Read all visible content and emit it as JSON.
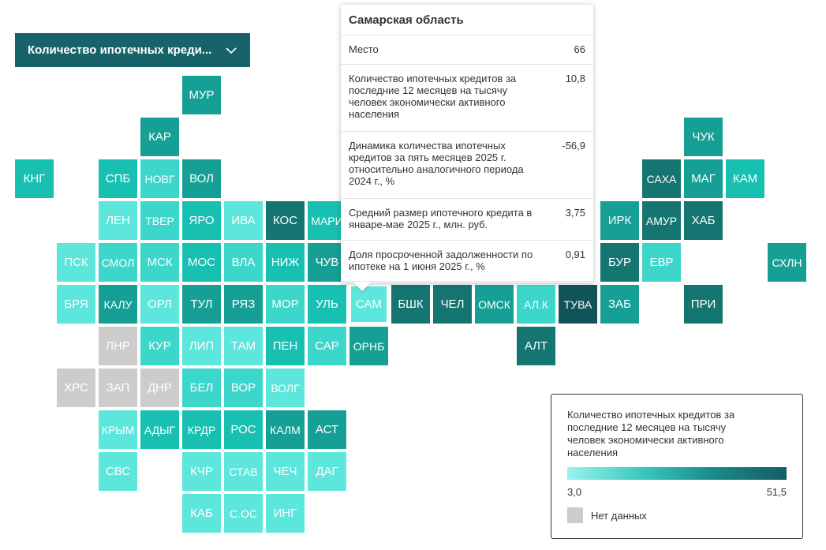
{
  "dropdown": {
    "label": "Количество ипотечных креди..."
  },
  "tooltip": {
    "title": "Самарская область",
    "rows": [
      {
        "label": "Место",
        "value": "66"
      },
      {
        "label": "Количество ипотечных кредитов за последние 12 месяцев на тысячу человек экономически активного населения",
        "value": "10,8"
      },
      {
        "label": "Динамика количества ипотечных кредитов за пять месяцев 2025 г. относительно аналогичного периода 2024 г., %",
        "value": "-56,9"
      },
      {
        "label": "Средний размер ипотечного кредита в январе-мае 2025 г., млн. руб.",
        "value": "3,75"
      },
      {
        "label": "Доля просроченной задолженности по ипотеке на 1 июня 2025 г., %",
        "value": "0,91"
      }
    ]
  },
  "legend": {
    "title": "Количество ипотечных кредитов за последние 12 месяцев на тысячу человек экономически активного населения",
    "min": "3,0",
    "max": "51,5",
    "nodata": "Нет данных",
    "colors": [
      "#9af3ec",
      "#3cc9bf",
      "#1a8a8a",
      "#155d65"
    ],
    "nodata_color": "#cccccc"
  },
  "regions": [
    {
      "code": "МУР",
      "row": 0,
      "col": 4,
      "color": "#16a095"
    },
    {
      "code": "КАР",
      "row": 1,
      "col": 3,
      "color": "#16a095"
    },
    {
      "code": "ЧУК",
      "row": 1,
      "col": 16,
      "color": "#16a095"
    },
    {
      "code": "КНГ",
      "row": 2,
      "col": 0,
      "color": "#18c0b2"
    },
    {
      "code": "СПБ",
      "row": 2,
      "col": 2,
      "color": "#18c0b2"
    },
    {
      "code": "НОВГ",
      "row": 2,
      "col": 3,
      "color": "#3cd6cb"
    },
    {
      "code": "ВОЛ",
      "row": 2,
      "col": 4,
      "color": "#16a095"
    },
    {
      "code": "САХА",
      "row": 2,
      "col": 15,
      "color": "#157570"
    },
    {
      "code": "МАГ",
      "row": 2,
      "col": 16,
      "color": "#16a095"
    },
    {
      "code": "КАМ",
      "row": 2,
      "col": 17,
      "color": "#18c0b2"
    },
    {
      "code": "ЛЕН",
      "row": 3,
      "col": 2,
      "color": "#5de6dc"
    },
    {
      "code": "ТВЕР",
      "row": 3,
      "col": 3,
      "color": "#3cd6cb"
    },
    {
      "code": "ЯРО",
      "row": 3,
      "col": 4,
      "color": "#18c0b2"
    },
    {
      "code": "ИВА",
      "row": 3,
      "col": 5,
      "color": "#5de6dc"
    },
    {
      "code": "КОС",
      "row": 3,
      "col": 6,
      "color": "#157570"
    },
    {
      "code": "МАРИ",
      "row": 3,
      "col": 7,
      "color": "#18c0b2"
    },
    {
      "code": "ИРК",
      "row": 3,
      "col": 14,
      "color": "#16a095"
    },
    {
      "code": "АМУР",
      "row": 3,
      "col": 15,
      "color": "#157570"
    },
    {
      "code": "ХАБ",
      "row": 3,
      "col": 16,
      "color": "#157570"
    },
    {
      "code": "ПСК",
      "row": 4,
      "col": 1,
      "color": "#5de6dc"
    },
    {
      "code": "СМОЛ",
      "row": 4,
      "col": 2,
      "color": "#3cd6cb"
    },
    {
      "code": "МСК",
      "row": 4,
      "col": 3,
      "color": "#3cd6cb"
    },
    {
      "code": "МОС",
      "row": 4,
      "col": 4,
      "color": "#18c0b2"
    },
    {
      "code": "ВЛА",
      "row": 4,
      "col": 5,
      "color": "#3cd6cb"
    },
    {
      "code": "НИЖ",
      "row": 4,
      "col": 6,
      "color": "#18c0b2"
    },
    {
      "code": "ЧУВ",
      "row": 4,
      "col": 7,
      "color": "#16a095"
    },
    {
      "code": "БУР",
      "row": 4,
      "col": 14,
      "color": "#157570"
    },
    {
      "code": "ЕВР",
      "row": 4,
      "col": 15,
      "color": "#3cd6cb"
    },
    {
      "code": "СХЛН",
      "row": 4,
      "col": 18,
      "color": "#16a095"
    },
    {
      "code": "БРЯ",
      "row": 5,
      "col": 1,
      "color": "#5de6dc"
    },
    {
      "code": "КАЛУ",
      "row": 5,
      "col": 2,
      "color": "#16a095"
    },
    {
      "code": "ОРЛ",
      "row": 5,
      "col": 3,
      "color": "#5de6dc"
    },
    {
      "code": "ТУЛ",
      "row": 5,
      "col": 4,
      "color": "#16a095"
    },
    {
      "code": "РЯЗ",
      "row": 5,
      "col": 5,
      "color": "#16a095"
    },
    {
      "code": "МОР",
      "row": 5,
      "col": 6,
      "color": "#3cd6cb"
    },
    {
      "code": "УЛЬ",
      "row": 5,
      "col": 7,
      "color": "#18c0b2"
    },
    {
      "code": "САМ",
      "row": 5,
      "col": 8,
      "color": "#5de6dc",
      "active": true
    },
    {
      "code": "БШК",
      "row": 5,
      "col": 9,
      "color": "#157570"
    },
    {
      "code": "ЧЕЛ",
      "row": 5,
      "col": 10,
      "color": "#157570"
    },
    {
      "code": "ОМСК",
      "row": 5,
      "col": 11,
      "color": "#16a095"
    },
    {
      "code": "АЛ.К",
      "row": 5,
      "col": 12,
      "color": "#3cd6cb"
    },
    {
      "code": "ТУВА",
      "row": 5,
      "col": 13,
      "color": "#125358"
    },
    {
      "code": "ЗАБ",
      "row": 5,
      "col": 14,
      "color": "#16a095"
    },
    {
      "code": "ПРИ",
      "row": 5,
      "col": 16,
      "color": "#157570"
    },
    {
      "code": "ЛНР",
      "row": 6,
      "col": 2,
      "color": "#cccccc"
    },
    {
      "code": "КУР",
      "row": 6,
      "col": 3,
      "color": "#3cd6cb"
    },
    {
      "code": "ЛИП",
      "row": 6,
      "col": 4,
      "color": "#5de6dc"
    },
    {
      "code": "ТАМ",
      "row": 6,
      "col": 5,
      "color": "#5de6dc"
    },
    {
      "code": "ПЕН",
      "row": 6,
      "col": 6,
      "color": "#18c0b2"
    },
    {
      "code": "САР",
      "row": 6,
      "col": 7,
      "color": "#3cd6cb"
    },
    {
      "code": "ОРНБ",
      "row": 6,
      "col": 8,
      "color": "#16a095"
    },
    {
      "code": "АЛТ",
      "row": 6,
      "col": 12,
      "color": "#157570"
    },
    {
      "code": "ХРС",
      "row": 7,
      "col": 1,
      "color": "#cccccc"
    },
    {
      "code": "ЗАП",
      "row": 7,
      "col": 2,
      "color": "#cccccc"
    },
    {
      "code": "ДНР",
      "row": 7,
      "col": 3,
      "color": "#cccccc"
    },
    {
      "code": "БЕЛ",
      "row": 7,
      "col": 4,
      "color": "#3cd6cb"
    },
    {
      "code": "ВОР",
      "row": 7,
      "col": 5,
      "color": "#3cd6cb"
    },
    {
      "code": "ВОЛГ",
      "row": 7,
      "col": 6,
      "color": "#5de6dc"
    },
    {
      "code": "КРЫМ",
      "row": 8,
      "col": 2,
      "color": "#5de6dc"
    },
    {
      "code": "АДЫГ",
      "row": 8,
      "col": 3,
      "color": "#18c0b2"
    },
    {
      "code": "КРДР",
      "row": 8,
      "col": 4,
      "color": "#18c0b2"
    },
    {
      "code": "РОС",
      "row": 8,
      "col": 5,
      "color": "#18c0b2"
    },
    {
      "code": "КАЛМ",
      "row": 8,
      "col": 6,
      "color": "#16a095"
    },
    {
      "code": "АСТ",
      "row": 8,
      "col": 7,
      "color": "#16a095"
    },
    {
      "code": "СВС",
      "row": 9,
      "col": 2,
      "color": "#5de6dc"
    },
    {
      "code": "КЧР",
      "row": 9,
      "col": 4,
      "color": "#5de6dc"
    },
    {
      "code": "СТАВ",
      "row": 9,
      "col": 5,
      "color": "#5de6dc"
    },
    {
      "code": "ЧЕЧ",
      "row": 9,
      "col": 6,
      "color": "#5de6dc"
    },
    {
      "code": "ДАГ",
      "row": 9,
      "col": 7,
      "color": "#5de6dc"
    },
    {
      "code": "КАБ",
      "row": 10,
      "col": 4,
      "color": "#5de6dc"
    },
    {
      "code": "С.ОС",
      "row": 10,
      "col": 5,
      "color": "#5de6dc"
    },
    {
      "code": "ИНГ",
      "row": 10,
      "col": 6,
      "color": "#5de6dc"
    }
  ]
}
